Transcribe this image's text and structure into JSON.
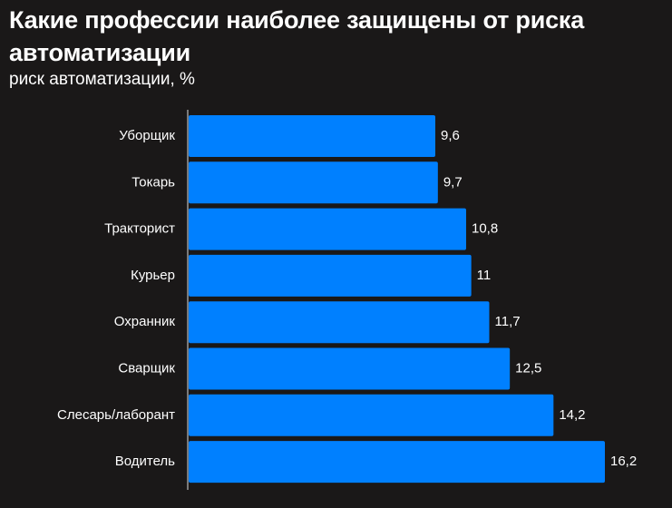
{
  "header": {
    "title": "Какие профессии наиболее защищены от риска автоматизации",
    "subtitle": "риск автоматизации, %"
  },
  "colors": {
    "background": "#1a1818",
    "bar": "#0080ff",
    "axis": "#9a9a9a",
    "text": "#ffffff"
  },
  "chart_data": {
    "type": "bar",
    "orientation": "horizontal",
    "title": "Какие профессии наиболее защищены от риска автоматизации",
    "subtitle": "риск автоматизации, %",
    "categories": [
      "Уборщик",
      "Токарь",
      "Тракторист",
      "Курьер",
      "Охранник",
      "Сварщик",
      "Слесарь/лаборант",
      "Водитель"
    ],
    "values": [
      9.6,
      9.7,
      10.8,
      11,
      11.7,
      12.5,
      14.2,
      16.2
    ],
    "value_labels": [
      "9,6",
      "9,7",
      "10,8",
      "11",
      "11,7",
      "12,5",
      "14,2",
      "16,2"
    ],
    "xlim": [
      0,
      16.2
    ],
    "grid": false,
    "legend": "none"
  }
}
